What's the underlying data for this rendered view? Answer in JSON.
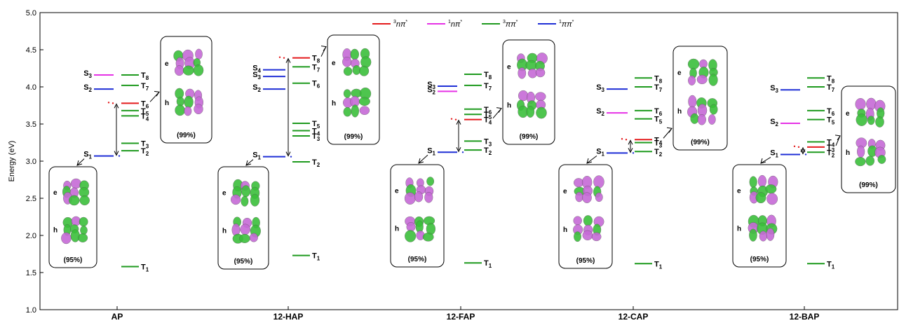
{
  "chart_data": {
    "type": "energy-level-diagram",
    "ylabel": "Energy (eV)",
    "ylim": [
      1.0,
      5.0
    ],
    "yticks": [
      "1.0",
      "1.5",
      "2.0",
      "2.5",
      "3.0",
      "3.5",
      "4.0",
      "4.5",
      "5.0"
    ],
    "legend": [
      {
        "sup": "3",
        "main": "nπ",
        "star": "*",
        "color": "#e41a1c"
      },
      {
        "sup": "1",
        "main": "nπ",
        "star": "*",
        "color": "#e632e6"
      },
      {
        "sup": "3",
        "main": "ππ",
        "star": "*",
        "color": "#1e9a1e"
      },
      {
        "sup": "1",
        "main": "ππ",
        "star": "*",
        "color": "#1f2fd6"
      }
    ],
    "colors": {
      "3npi": "#e41a1c",
      "1npi": "#e632e6",
      "3pipi": "#1e9a1e",
      "1pipi": "#1f2fd6"
    },
    "box_letters": {
      "electron": "e",
      "hole": "h"
    },
    "molecules": [
      {
        "name": "AP",
        "singlets": [
          {
            "label": "S",
            "sub": "1",
            "e": 3.07,
            "type": "1pipi"
          },
          {
            "label": "S",
            "sub": "2",
            "e": 3.97,
            "type": "1pipi"
          },
          {
            "label": "S",
            "sub": "3",
            "e": 4.16,
            "type": "1npi"
          }
        ],
        "triplets": [
          {
            "label": "T",
            "sub": "1",
            "e": 1.58,
            "type": "3pipi"
          },
          {
            "label": "T",
            "sub": "2",
            "e": 3.14,
            "type": "3pipi"
          },
          {
            "label": "T",
            "sub": "3",
            "e": 3.24,
            "type": "3pipi"
          },
          {
            "label": "T",
            "sub": "4",
            "e": 3.61,
            "type": "3pipi"
          },
          {
            "label": "T",
            "sub": "5",
            "e": 3.68,
            "type": "3pipi"
          },
          {
            "label": "T",
            "sub": "6",
            "e": 3.78,
            "type": "3npi"
          },
          {
            "label": "T",
            "sub": "7",
            "e": 4.02,
            "type": "3pipi"
          },
          {
            "label": "T",
            "sub": "8",
            "e": 4.16,
            "type": "3pipi"
          }
        ],
        "low_box_pct": "(95%)",
        "high_box_pct": "(99%)"
      },
      {
        "name": "12-HAP",
        "singlets": [
          {
            "label": "S",
            "sub": "1",
            "e": 3.06,
            "type": "1pipi"
          },
          {
            "label": "S",
            "sub": "2",
            "e": 3.97,
            "type": "1pipi"
          },
          {
            "label": "S",
            "sub": "3",
            "e": 4.14,
            "type": "1pipi"
          },
          {
            "label": "S",
            "sub": "4",
            "e": 4.23,
            "type": "1pipi"
          }
        ],
        "triplets": [
          {
            "label": "T",
            "sub": "1",
            "e": 1.73,
            "type": "3pipi"
          },
          {
            "label": "T",
            "sub": "2",
            "e": 2.99,
            "type": "3pipi"
          },
          {
            "label": "T",
            "sub": "3",
            "e": 3.34,
            "type": "3pipi"
          },
          {
            "label": "T",
            "sub": "4",
            "e": 3.41,
            "type": "3pipi"
          },
          {
            "label": "T",
            "sub": "5",
            "e": 3.51,
            "type": "3pipi"
          },
          {
            "label": "T",
            "sub": "6",
            "e": 4.05,
            "type": "3pipi"
          },
          {
            "label": "T",
            "sub": "7",
            "e": 4.27,
            "type": "3pipi"
          },
          {
            "label": "T",
            "sub": "8",
            "e": 4.39,
            "type": "3npi"
          }
        ],
        "low_box_pct": "(95%)",
        "high_box_pct": "(99%)"
      },
      {
        "name": "12-FAP",
        "singlets": [
          {
            "label": "S",
            "sub": "1",
            "e": 3.12,
            "type": "1pipi"
          },
          {
            "label": "S",
            "sub": "2",
            "e": 3.94,
            "type": "1npi"
          },
          {
            "label": "S",
            "sub": "3",
            "e": 4.01,
            "type": "1pipi"
          }
        ],
        "triplets": [
          {
            "label": "T",
            "sub": "1",
            "e": 1.63,
            "type": "3pipi"
          },
          {
            "label": "T",
            "sub": "2",
            "e": 3.15,
            "type": "3pipi"
          },
          {
            "label": "T",
            "sub": "3",
            "e": 3.27,
            "type": "3pipi"
          },
          {
            "label": "T",
            "sub": "4",
            "e": 3.56,
            "type": "3npi"
          },
          {
            "label": "T",
            "sub": "5",
            "e": 3.63,
            "type": "3pipi"
          },
          {
            "label": "T",
            "sub": "6",
            "e": 3.7,
            "type": "3pipi"
          },
          {
            "label": "T",
            "sub": "7",
            "e": 4.02,
            "type": "3pipi"
          },
          {
            "label": "T",
            "sub": "8",
            "e": 4.17,
            "type": "3pipi"
          }
        ],
        "low_box_pct": "(95%)",
        "high_box_pct": "(99%)"
      },
      {
        "name": "12-CAP",
        "singlets": [
          {
            "label": "S",
            "sub": "1",
            "e": 3.11,
            "type": "1pipi"
          },
          {
            "label": "S",
            "sub": "2",
            "e": 3.65,
            "type": "1npi"
          },
          {
            "label": "S",
            "sub": "3",
            "e": 3.97,
            "type": "1pipi"
          }
        ],
        "triplets": [
          {
            "label": "T",
            "sub": "1",
            "e": 1.62,
            "type": "3pipi"
          },
          {
            "label": "T",
            "sub": "2",
            "e": 3.13,
            "type": "3pipi"
          },
          {
            "label": "T",
            "sub": "3",
            "e": 3.25,
            "type": "3pipi"
          },
          {
            "label": "T",
            "sub": "4",
            "e": 3.29,
            "type": "3npi"
          },
          {
            "label": "T",
            "sub": "5",
            "e": 3.57,
            "type": "3pipi"
          },
          {
            "label": "T",
            "sub": "6",
            "e": 3.68,
            "type": "3pipi"
          },
          {
            "label": "T",
            "sub": "7",
            "e": 4.0,
            "type": "3pipi"
          },
          {
            "label": "T",
            "sub": "8",
            "e": 4.12,
            "type": "3pipi"
          }
        ],
        "low_box_pct": "(95%)",
        "high_box_pct": "(99%)"
      },
      {
        "name": "12-BAP",
        "singlets": [
          {
            "label": "S",
            "sub": "1",
            "e": 3.09,
            "type": "1pipi"
          },
          {
            "label": "S",
            "sub": "2",
            "e": 3.51,
            "type": "1npi"
          },
          {
            "label": "S",
            "sub": "3",
            "e": 3.96,
            "type": "1pipi"
          }
        ],
        "triplets": [
          {
            "label": "T",
            "sub": "1",
            "e": 1.62,
            "type": "3pipi"
          },
          {
            "label": "T",
            "sub": "2",
            "e": 3.12,
            "type": "3pipi"
          },
          {
            "label": "T",
            "sub": "3",
            "e": 3.19,
            "type": "3npi"
          },
          {
            "label": "T",
            "sub": "4",
            "e": 3.26,
            "type": "3pipi"
          },
          {
            "label": "T",
            "sub": "5",
            "e": 3.56,
            "type": "3pipi"
          },
          {
            "label": "T",
            "sub": "6",
            "e": 3.68,
            "type": "3pipi"
          },
          {
            "label": "T",
            "sub": "7",
            "e": 4.0,
            "type": "3pipi"
          },
          {
            "label": "T",
            "sub": "8",
            "e": 4.12,
            "type": "3pipi"
          }
        ],
        "low_box_pct": "(95%)",
        "high_box_pct": "(99%)"
      }
    ]
  }
}
